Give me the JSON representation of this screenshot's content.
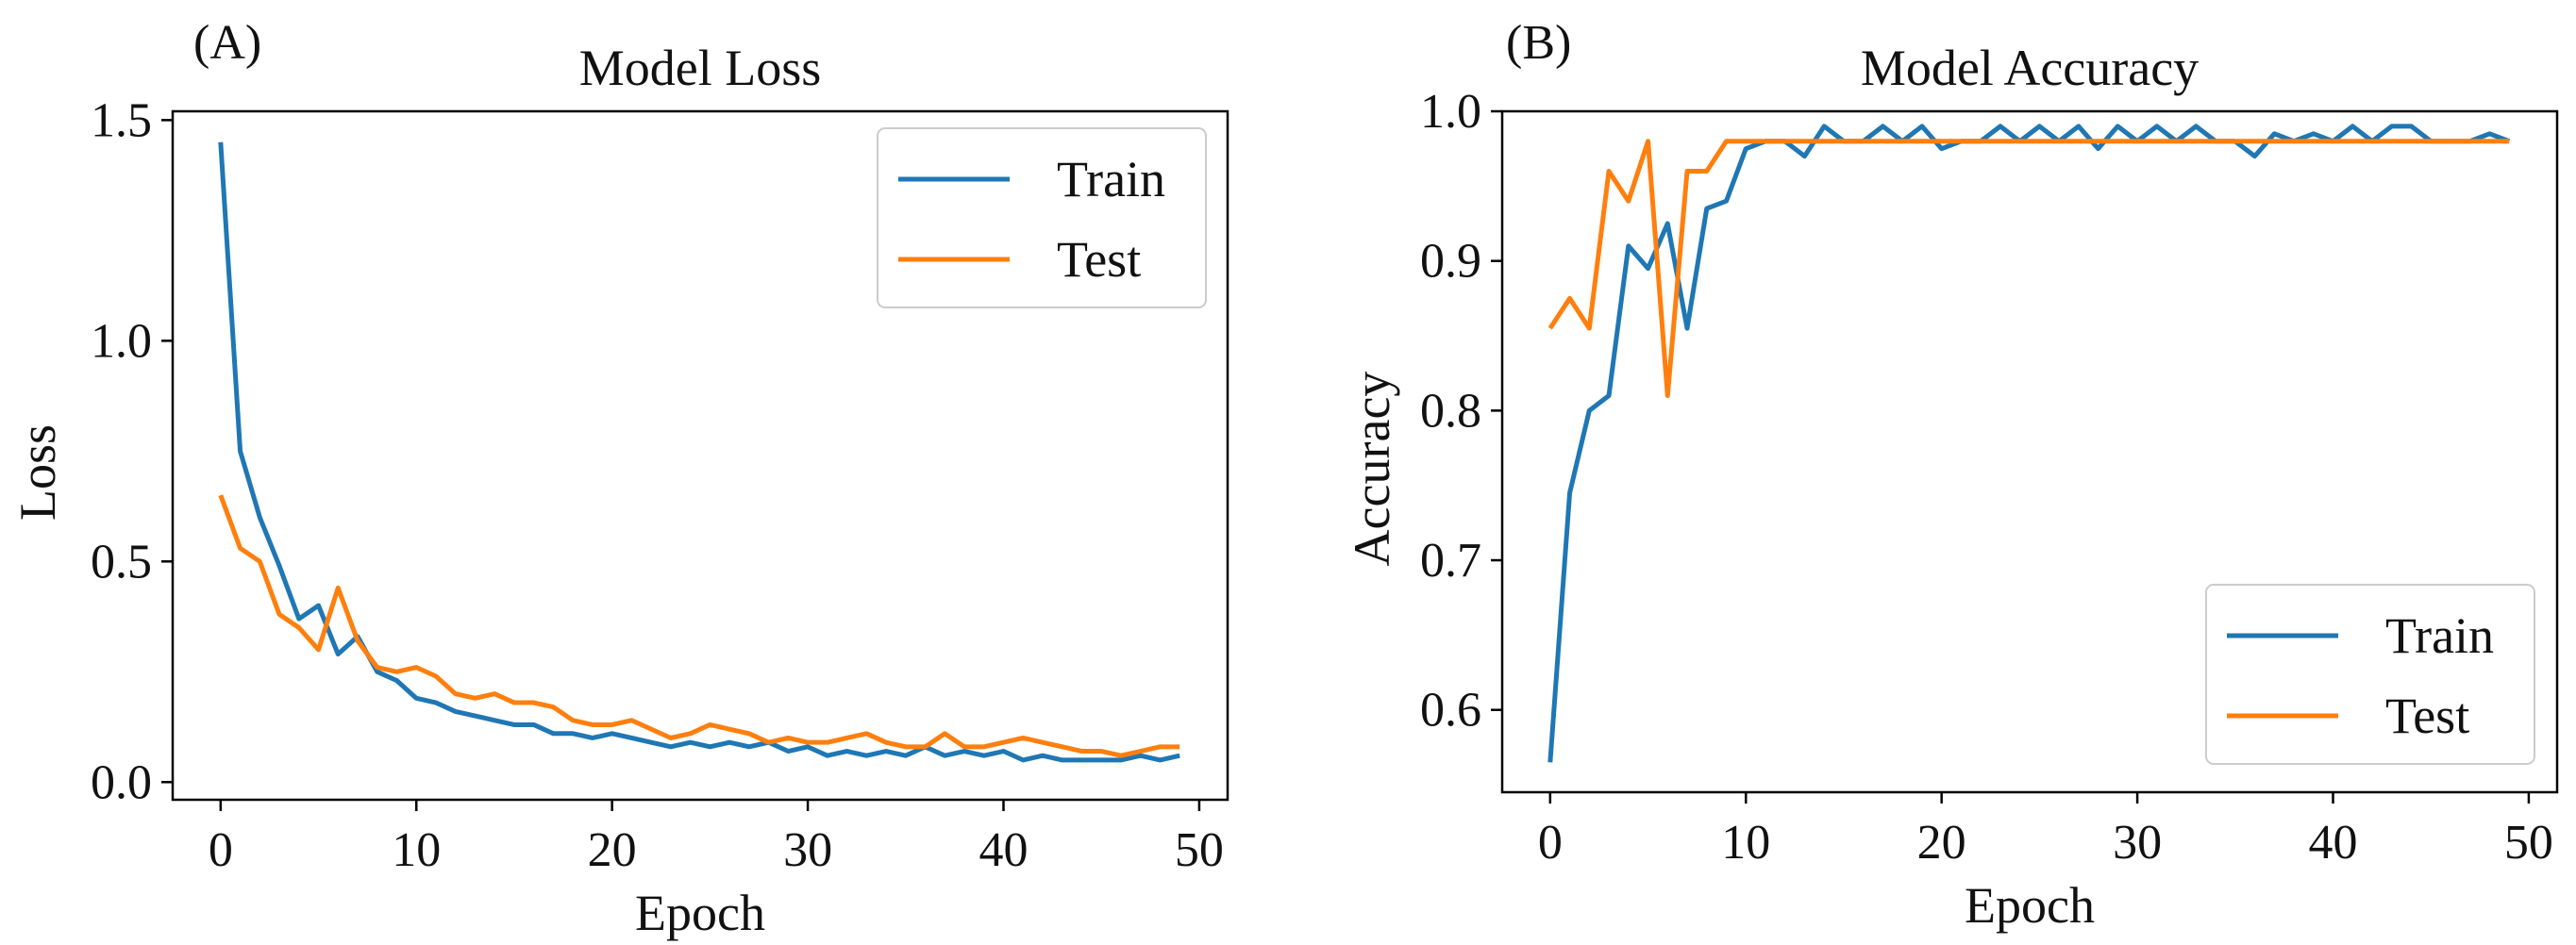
{
  "chart_data": [
    {
      "type": "line",
      "panel_label": "(A)",
      "title": "Model Loss",
      "xlabel": "Epoch",
      "ylabel": "Loss",
      "xlim": [
        -2.45,
        51.45
      ],
      "ylim": [
        -0.04,
        1.52
      ],
      "xticks": [
        0,
        10,
        20,
        30,
        40,
        50
      ],
      "xtick_labels": [
        "0",
        "10",
        "20",
        "30",
        "40",
        "50"
      ],
      "yticks": [
        0.0,
        0.5,
        1.0,
        1.5
      ],
      "ytick_labels": [
        "0.0",
        "0.5",
        "1.0",
        "1.5"
      ],
      "grid": false,
      "legend_position": "top-right",
      "x": [
        0,
        1,
        2,
        3,
        4,
        5,
        6,
        7,
        8,
        9,
        10,
        11,
        12,
        13,
        14,
        15,
        16,
        17,
        18,
        19,
        20,
        21,
        22,
        23,
        24,
        25,
        26,
        27,
        28,
        29,
        30,
        31,
        32,
        33,
        34,
        35,
        36,
        37,
        38,
        39,
        40,
        41,
        42,
        43,
        44,
        45,
        46,
        47,
        48,
        49
      ],
      "series": [
        {
          "name": "Train",
          "color": "#1f77b4",
          "values": [
            1.45,
            0.75,
            0.6,
            0.49,
            0.37,
            0.4,
            0.29,
            0.33,
            0.25,
            0.23,
            0.19,
            0.18,
            0.16,
            0.15,
            0.14,
            0.13,
            0.13,
            0.11,
            0.11,
            0.1,
            0.11,
            0.1,
            0.09,
            0.08,
            0.09,
            0.08,
            0.09,
            0.08,
            0.09,
            0.07,
            0.08,
            0.06,
            0.07,
            0.06,
            0.07,
            0.06,
            0.08,
            0.06,
            0.07,
            0.06,
            0.07,
            0.05,
            0.06,
            0.05,
            0.05,
            0.05,
            0.05,
            0.06,
            0.05,
            0.06
          ]
        },
        {
          "name": "Test",
          "color": "#ff7f0e",
          "values": [
            0.65,
            0.53,
            0.5,
            0.38,
            0.35,
            0.3,
            0.44,
            0.32,
            0.26,
            0.25,
            0.26,
            0.24,
            0.2,
            0.19,
            0.2,
            0.18,
            0.18,
            0.17,
            0.14,
            0.13,
            0.13,
            0.14,
            0.12,
            0.1,
            0.11,
            0.13,
            0.12,
            0.11,
            0.09,
            0.1,
            0.09,
            0.09,
            0.1,
            0.11,
            0.09,
            0.08,
            0.08,
            0.11,
            0.08,
            0.08,
            0.09,
            0.1,
            0.09,
            0.08,
            0.07,
            0.07,
            0.06,
            0.07,
            0.08,
            0.08
          ]
        }
      ]
    },
    {
      "type": "line",
      "panel_label": "(B)",
      "title": "Model Accuracy",
      "xlabel": "Epoch",
      "ylabel": "Accuracy",
      "xlim": [
        -2.45,
        51.45
      ],
      "ylim": [
        0.545,
        1.0
      ],
      "xticks": [
        0,
        10,
        20,
        30,
        40,
        50
      ],
      "xtick_labels": [
        "0",
        "10",
        "20",
        "30",
        "40",
        "50"
      ],
      "yticks": [
        0.6,
        0.7,
        0.8,
        0.9,
        1.0
      ],
      "ytick_labels": [
        "0.6",
        "0.7",
        "0.8",
        "0.9",
        "1.0"
      ],
      "grid": false,
      "legend_position": "bottom-right",
      "x": [
        0,
        1,
        2,
        3,
        4,
        5,
        6,
        7,
        8,
        9,
        10,
        11,
        12,
        13,
        14,
        15,
        16,
        17,
        18,
        19,
        20,
        21,
        22,
        23,
        24,
        25,
        26,
        27,
        28,
        29,
        30,
        31,
        32,
        33,
        34,
        35,
        36,
        37,
        38,
        39,
        40,
        41,
        42,
        43,
        44,
        45,
        46,
        47,
        48,
        49
      ],
      "series": [
        {
          "name": "Train",
          "color": "#1f77b4",
          "values": [
            0.565,
            0.745,
            0.8,
            0.81,
            0.91,
            0.895,
            0.925,
            0.855,
            0.935,
            0.94,
            0.975,
            0.98,
            0.98,
            0.97,
            0.99,
            0.98,
            0.98,
            0.99,
            0.98,
            0.99,
            0.975,
            0.98,
            0.98,
            0.99,
            0.98,
            0.99,
            0.98,
            0.99,
            0.975,
            0.99,
            0.98,
            0.99,
            0.98,
            0.99,
            0.98,
            0.98,
            0.97,
            0.985,
            0.98,
            0.985,
            0.98,
            0.99,
            0.98,
            0.99,
            0.99,
            0.98,
            0.98,
            0.98,
            0.985,
            0.98
          ]
        },
        {
          "name": "Test",
          "color": "#ff7f0e",
          "values": [
            0.855,
            0.875,
            0.855,
            0.96,
            0.94,
            0.98,
            0.81,
            0.96,
            0.96,
            0.98,
            0.98,
            0.98,
            0.98,
            0.98,
            0.98,
            0.98,
            0.98,
            0.98,
            0.98,
            0.98,
            0.98,
            0.98,
            0.98,
            0.98,
            0.98,
            0.98,
            0.98,
            0.98,
            0.98,
            0.98,
            0.98,
            0.98,
            0.98,
            0.98,
            0.98,
            0.98,
            0.98,
            0.98,
            0.98,
            0.98,
            0.98,
            0.98,
            0.98,
            0.98,
            0.98,
            0.98,
            0.98,
            0.98,
            0.98,
            0.98
          ]
        }
      ]
    }
  ]
}
